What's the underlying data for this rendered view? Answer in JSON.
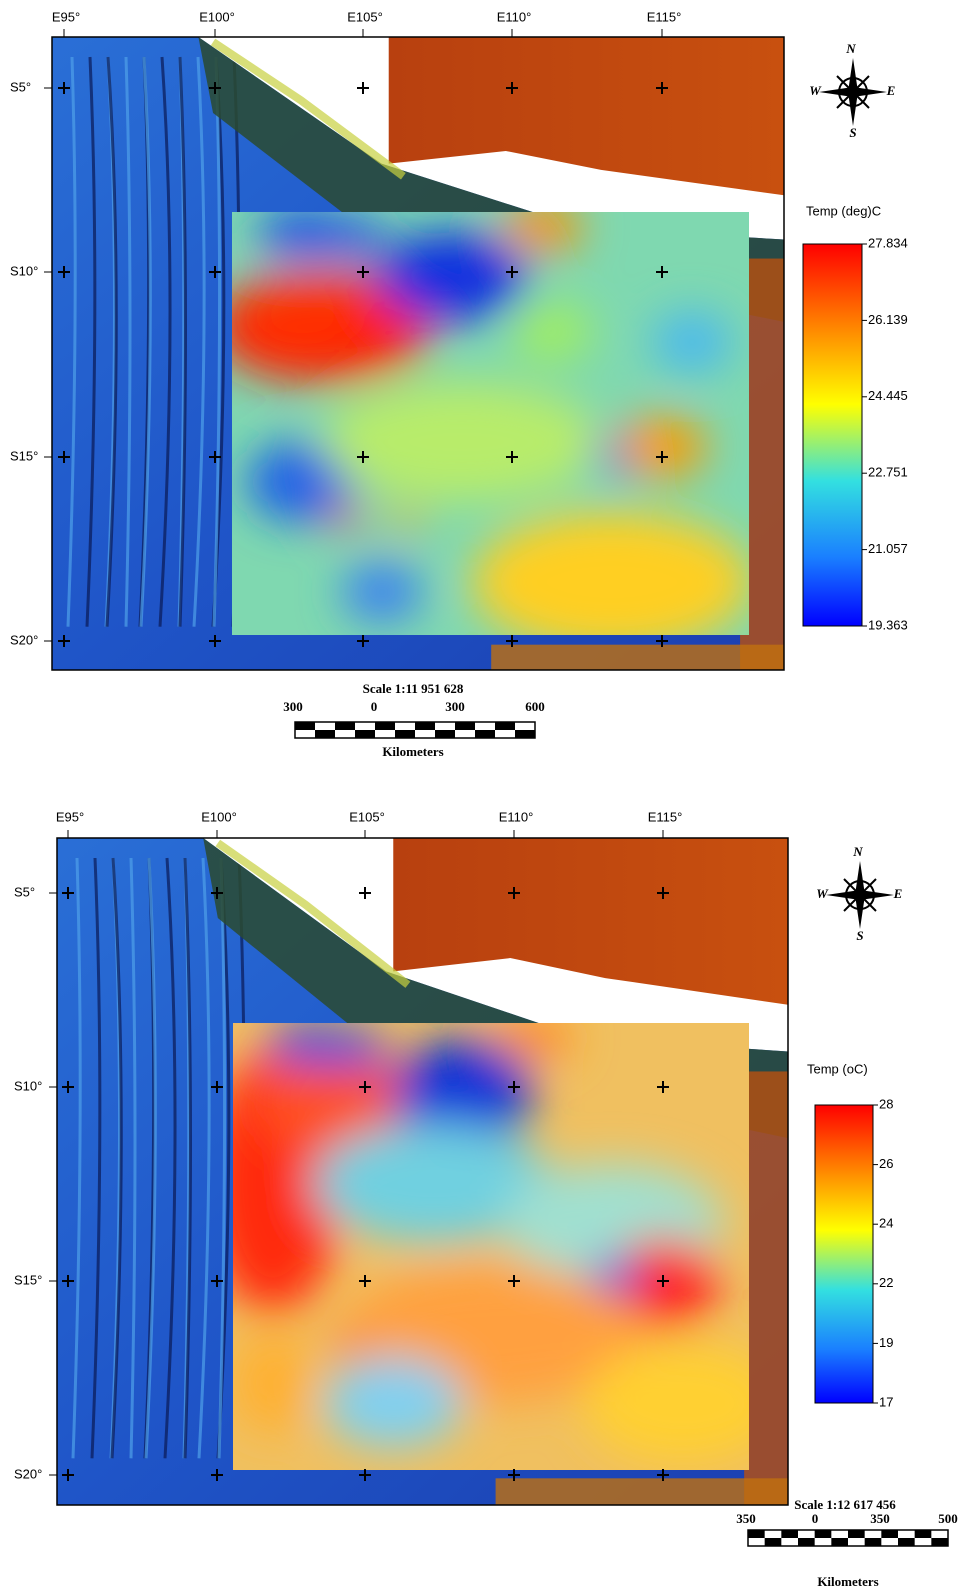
{
  "panels": [
    {
      "longitude_labels": [
        "E95°",
        "E100°",
        "E105°",
        "E110°",
        "E115°"
      ],
      "latitude_labels": [
        "S5°",
        "S10°",
        "S15°",
        "S20°"
      ],
      "compass": {
        "n": "N",
        "w": "W",
        "e": "E",
        "s": "S"
      },
      "legend": {
        "title": "Temp (deg)C",
        "ticks": [
          "27.834",
          "26.139",
          "24.445",
          "22.751",
          "21.057",
          "19.363"
        ]
      },
      "scale": {
        "title": "Scale 1:11 951 628",
        "ticks": [
          "300",
          "0",
          "300",
          "600"
        ],
        "unit": "Kilometers"
      }
    },
    {
      "longitude_labels": [
        "E95°",
        "E100°",
        "E105°",
        "E110°",
        "E115°"
      ],
      "latitude_labels": [
        "S5°",
        "S10°",
        "S15°",
        "S20°"
      ],
      "compass": {
        "n": "N",
        "w": "W",
        "e": "E",
        "s": "S"
      },
      "legend": {
        "title": "Temp  (oC)",
        "ticks": [
          "28",
          "26",
          "24",
          "22",
          "19",
          "17"
        ]
      },
      "scale": {
        "title": "Scale 1:12 617 456",
        "ticks": [
          "350",
          "0",
          "350",
          "500"
        ],
        "unit": "Kilometers"
      }
    }
  ]
}
